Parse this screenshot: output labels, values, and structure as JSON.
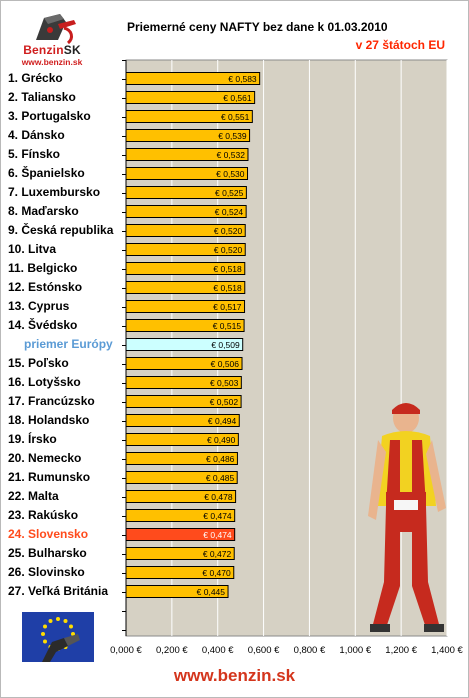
{
  "header": {
    "title": "Priemerné ceny NAFTY bez dane k 01.03.2010",
    "subtitle": "v 27 štátoch EU"
  },
  "logo": {
    "brand_main": "Benzin",
    "brand_suffix": "SK",
    "url": "www.benzin.sk"
  },
  "footer": {
    "url": "www.benzin.sk"
  },
  "colors": {
    "bar": "#ffc000",
    "bar_average": "#ccffff",
    "bar_highlight": "#ff4b1c",
    "label_average": "#5b9bd5",
    "label_highlight": "#ff4b1c",
    "plot_background": "#d6d1c4"
  },
  "chart_data": {
    "type": "bar",
    "orientation": "horizontal",
    "title": "Priemerné ceny NAFTY bez dane k 01.03.2010",
    "subtitle": "v 27 štátoch EU",
    "xlim": [
      0,
      1.4
    ],
    "x_ticks": [
      "0,000 €",
      "0,200 €",
      "0,400 €",
      "0,600 €",
      "0,800 €",
      "1,000 €",
      "1,200 €",
      "1,400 €"
    ],
    "x_tick_values": [
      0,
      0.2,
      0.4,
      0.6,
      0.8,
      1.0,
      1.2,
      1.4
    ],
    "vertical_grid": true,
    "categories": [
      "1. Grécko",
      "2. Taliansko",
      "3. Portugalsko",
      "4. Dánsko",
      "5. Fínsko",
      "6. Španielsko",
      "7. Luxembursko",
      "8. Maďarsko",
      "9. Česká republika",
      "10. Litva",
      "11. Belgicko",
      "12. Estónsko",
      "13. Cyprus",
      "14. Švédsko",
      "priemer Európy",
      "15. Poľsko",
      "16. Lotyšsko",
      "17. Francúzsko",
      "18. Holandsko",
      "19. Írsko",
      "20. Nemecko",
      "21. Rumunsko",
      "22. Malta",
      "23. Rakúsko",
      "24. Slovensko",
      "25. Bulharsko",
      "26. Slovinsko",
      "27. Veľká Británia"
    ],
    "values": [
      0.583,
      0.561,
      0.551,
      0.539,
      0.532,
      0.53,
      0.525,
      0.524,
      0.52,
      0.52,
      0.518,
      0.518,
      0.517,
      0.515,
      0.509,
      0.506,
      0.503,
      0.502,
      0.494,
      0.49,
      0.486,
      0.485,
      0.478,
      0.474,
      0.474,
      0.472,
      0.47,
      0.445
    ],
    "value_labels": [
      "€ 0,583",
      "€ 0,561",
      "€ 0,551",
      "€ 0,539",
      "€ 0,532",
      "€ 0,530",
      "€ 0,525",
      "€ 0,524",
      "€ 0,520",
      "€ 0,520",
      "€ 0,518",
      "€ 0,518",
      "€ 0,517",
      "€ 0,515",
      "€ 0,509",
      "€ 0,506",
      "€ 0,503",
      "€ 0,502",
      "€ 0,494",
      "€ 0,490",
      "€ 0,486",
      "€ 0,485",
      "€ 0,478",
      "€ 0,474",
      "€ 0,474",
      "€ 0,472",
      "€ 0,470",
      "€ 0,445"
    ],
    "average_category": "priemer Európy",
    "highlight_category": "24. Slovensko"
  }
}
